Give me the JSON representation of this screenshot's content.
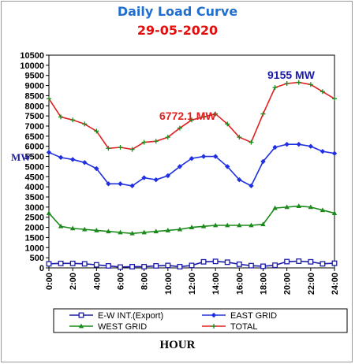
{
  "chart_data": {
    "type": "line",
    "title": "Daily Load Curve",
    "subtitle": "29-05-2020",
    "xlabel": "HOUR",
    "ylabel": "MW",
    "xlim": [
      0,
      24
    ],
    "ylim": [
      0,
      10500
    ],
    "x_ticks": [
      "0:00",
      "2:00",
      "4:00",
      "6:00",
      "8:00",
      "10:00",
      "12:00",
      "14:00",
      "16:00",
      "18:00",
      "20:00",
      "22:00",
      "24:00"
    ],
    "y_ticks": [
      "0",
      "500",
      "1000",
      "1500",
      "2000",
      "2500",
      "3000",
      "3500",
      "4000",
      "4500",
      "5000",
      "5500",
      "6000",
      "6500",
      "7000",
      "7500",
      "8000",
      "8500",
      "9000",
      "9500",
      "10000",
      "10500"
    ],
    "grid": false,
    "legend_position": "bottom",
    "x": [
      0,
      1,
      2,
      3,
      4,
      5,
      6,
      7,
      8,
      9,
      10,
      11,
      12,
      13,
      14,
      15,
      16,
      17,
      18,
      19,
      20,
      21,
      22,
      23,
      24
    ],
    "series": [
      {
        "name": "E-W INT.(Export)",
        "color": "#1c1ca8",
        "marker": "square-open",
        "values": [
          200,
          220,
          220,
          200,
          150,
          100,
          40,
          60,
          60,
          100,
          120,
          60,
          120,
          300,
          320,
          280,
          180,
          110,
          80,
          130,
          310,
          330,
          300,
          200,
          230
        ]
      },
      {
        "name": "EAST GRID",
        "color": "#2030e0",
        "marker": "diamond",
        "values": [
          5700,
          5450,
          5350,
          5200,
          4900,
          4150,
          4150,
          4050,
          4450,
          4350,
          4550,
          5000,
          5400,
          5500,
          5500,
          5000,
          4350,
          4050,
          5250,
          5950,
          6100,
          6100,
          6000,
          5750,
          5650
        ]
      },
      {
        "name": "WEST GRID",
        "color": "#1a8a1a",
        "marker": "triangle",
        "values": [
          2700,
          2050,
          1950,
          1900,
          1850,
          1800,
          1750,
          1700,
          1750,
          1800,
          1850,
          1900,
          2000,
          2050,
          2100,
          2100,
          2100,
          2100,
          2150,
          2950,
          3000,
          3050,
          3000,
          2850,
          2700
        ]
      },
      {
        "name": "TOTAL",
        "color": "#e02020",
        "marker": "plus",
        "values": [
          8350,
          7450,
          7300,
          7100,
          6750,
          5900,
          5950,
          5850,
          6200,
          6250,
          6450,
          6900,
          7300,
          7450,
          7600,
          7100,
          6450,
          6200,
          7600,
          8900,
          9100,
          9155,
          9050,
          8700,
          8350
        ]
      }
    ],
    "annotations": [
      {
        "text": "6772.1 MW",
        "color": "#e02020"
      },
      {
        "text": "9155 MW",
        "color": "#1c1ca8"
      }
    ]
  }
}
